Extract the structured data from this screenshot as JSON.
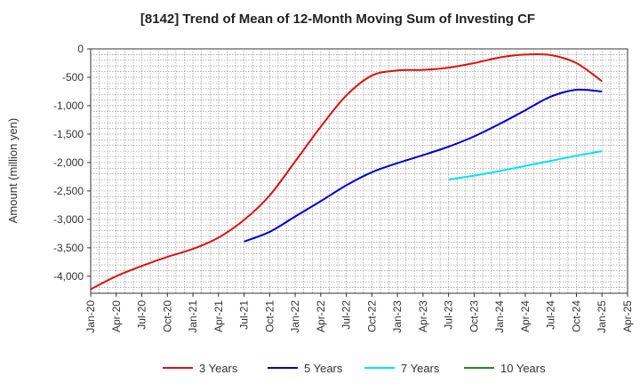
{
  "chart_data": {
    "type": "line",
    "title": "[8142]  Trend of Mean of 12-Month Moving Sum of Investing CF",
    "ylabel": "Amount (million yen)",
    "xlabel": "",
    "x_ticks": [
      "Jan-20",
      "Apr-20",
      "Jul-20",
      "Oct-20",
      "Jan-21",
      "Apr-21",
      "Jul-21",
      "Oct-21",
      "Jan-22",
      "Apr-22",
      "Jul-22",
      "Oct-22",
      "Jan-23",
      "Apr-23",
      "Jul-23",
      "Oct-23",
      "Jan-24",
      "Apr-24",
      "Jul-24",
      "Oct-24",
      "Jan-25",
      "Apr-25"
    ],
    "y_ticks": [
      "0",
      "-500",
      "-1,000",
      "-1,500",
      "-2,000",
      "-2,500",
      "-3,000",
      "-3,500",
      "-4,000"
    ],
    "y_tick_values": [
      0,
      -500,
      -1000,
      -1500,
      -2000,
      -2500,
      -3000,
      -3500,
      -4000
    ],
    "xlim": [
      "2020-01",
      "2025-04"
    ],
    "ylim": [
      -4300,
      0
    ],
    "grid": true,
    "legend_position": "bottom",
    "series": [
      {
        "name": "3 Years",
        "color": "#dd1111",
        "x": [
          "2020-01",
          "2020-04",
          "2020-07",
          "2020-10",
          "2021-01",
          "2021-04",
          "2021-07",
          "2021-10",
          "2022-01",
          "2022-04",
          "2022-07",
          "2022-10",
          "2023-01",
          "2023-04",
          "2023-07",
          "2023-10",
          "2024-01",
          "2024-04",
          "2024-07",
          "2024-10",
          "2025-01"
        ],
        "values": [
          -4230,
          -4000,
          -3820,
          -3660,
          -3520,
          -3320,
          -3010,
          -2580,
          -1980,
          -1370,
          -820,
          -470,
          -380,
          -370,
          -330,
          -250,
          -150,
          -100,
          -110,
          -250,
          -570
        ]
      },
      {
        "name": "5 Years",
        "color": "#0000cc",
        "x": [
          "2021-07",
          "2021-10",
          "2022-01",
          "2022-04",
          "2022-07",
          "2022-10",
          "2023-01",
          "2023-04",
          "2023-07",
          "2023-10",
          "2024-01",
          "2024-04",
          "2024-07",
          "2024-10",
          "2025-01"
        ],
        "values": [
          -3390,
          -3220,
          -2950,
          -2680,
          -2400,
          -2170,
          -2010,
          -1870,
          -1720,
          -1540,
          -1320,
          -1080,
          -840,
          -720,
          -750
        ]
      },
      {
        "name": "7 Years",
        "color": "#00e5ee",
        "x": [
          "2023-07",
          "2023-10",
          "2024-01",
          "2024-04",
          "2024-07",
          "2024-10",
          "2025-01"
        ],
        "values": [
          -2300,
          -2230,
          -2150,
          -2060,
          -1970,
          -1880,
          -1800
        ]
      },
      {
        "name": "10 Years",
        "color": "#228b22",
        "x": [],
        "values": []
      }
    ]
  }
}
